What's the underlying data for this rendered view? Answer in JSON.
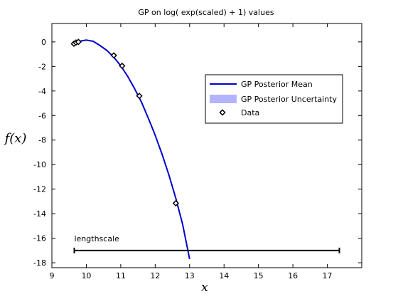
{
  "chart_data": {
    "type": "line",
    "title": "GP on log( exp(scaled) + 1) values",
    "xlabel": "x",
    "ylabel": "f(x)",
    "xlim": [
      9,
      18
    ],
    "ylim": [
      -18.4,
      1.5
    ],
    "xticks": [
      9,
      10,
      11,
      12,
      13,
      14,
      15,
      16,
      17
    ],
    "yticks": [
      0,
      -2,
      -4,
      -6,
      -8,
      -10,
      -12,
      -14,
      -16,
      -18
    ],
    "grid": false,
    "legend_position": "top-right",
    "series": [
      {
        "name": "GP Posterior Mean",
        "kind": "line",
        "color": "#0000cc",
        "x": [
          9.6,
          9.8,
          10.0,
          10.2,
          10.4,
          10.6,
          10.8,
          11.0,
          11.2,
          11.4,
          11.6,
          11.8,
          12.0,
          12.2,
          12.4,
          12.6,
          12.8,
          13.0
        ],
        "y": [
          -0.2,
          0.05,
          0.15,
          0.05,
          -0.3,
          -0.7,
          -1.25,
          -1.95,
          -2.8,
          -3.8,
          -4.9,
          -6.2,
          -7.6,
          -9.15,
          -10.85,
          -12.75,
          -14.9,
          -17.7
        ]
      },
      {
        "name": "GP Posterior Uncertainty",
        "kind": "band",
        "color": "#b3b3ff"
      },
      {
        "name": "Data",
        "kind": "scatter",
        "marker": "diamond",
        "color": "#000000",
        "x": [
          9.64,
          9.7,
          9.77,
          10.8,
          11.04,
          11.54,
          12.6
        ],
        "y": [
          -0.15,
          -0.05,
          0.0,
          -1.1,
          -1.95,
          -4.4,
          -13.15
        ]
      }
    ],
    "annotations": [
      {
        "text": "lengthscale",
        "x_start": 9.65,
        "x_end": 17.35,
        "y": -17.0
      }
    ]
  }
}
